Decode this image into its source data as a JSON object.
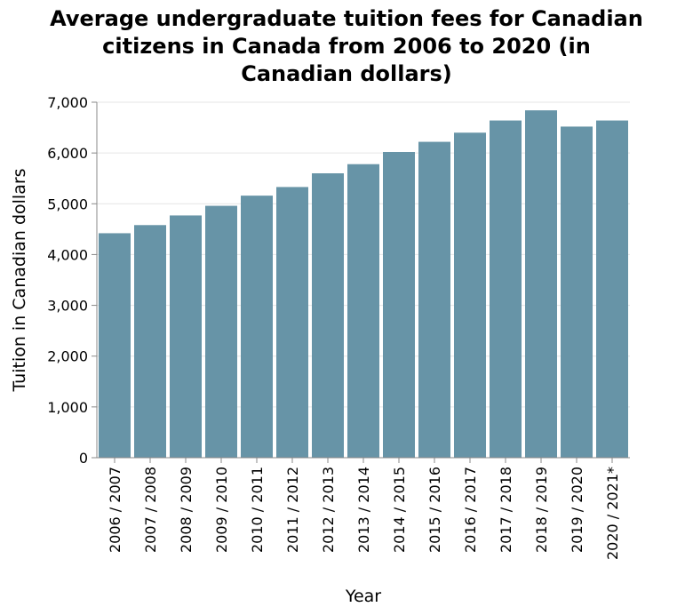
{
  "chart_data": {
    "type": "bar",
    "title_lines": [
      "Average undergraduate tuition fees for Canadian",
      "citizens in Canada from 2006 to 2020 (in",
      "Canadian dollars)"
    ],
    "xlabel": "Year",
    "ylabel": "Tuition in Canadian dollars",
    "ylim": [
      0,
      7000
    ],
    "yticks": [
      "0",
      "1,000",
      "2,000",
      "3,000",
      "4,000",
      "5,000",
      "6,000",
      "7,000"
    ],
    "grid": true,
    "bar_color": "#6794a7",
    "categories": [
      "2006 / 2007",
      "2007 / 2008",
      "2008 / 2009",
      "2009 / 2010",
      "2010 / 2011",
      "2011 / 2012",
      "2012 / 2013",
      "2013 / 2014",
      "2014 / 2015",
      "2015 / 2016",
      "2016 / 2017",
      "2017 / 2018",
      "2018 / 2019",
      "2019 / 2020",
      "2020 / 2021*"
    ],
    "values": [
      4420,
      4580,
      4770,
      4960,
      5160,
      5330,
      5600,
      5780,
      6020,
      6220,
      6400,
      6640,
      6840,
      6520,
      6640
    ]
  }
}
